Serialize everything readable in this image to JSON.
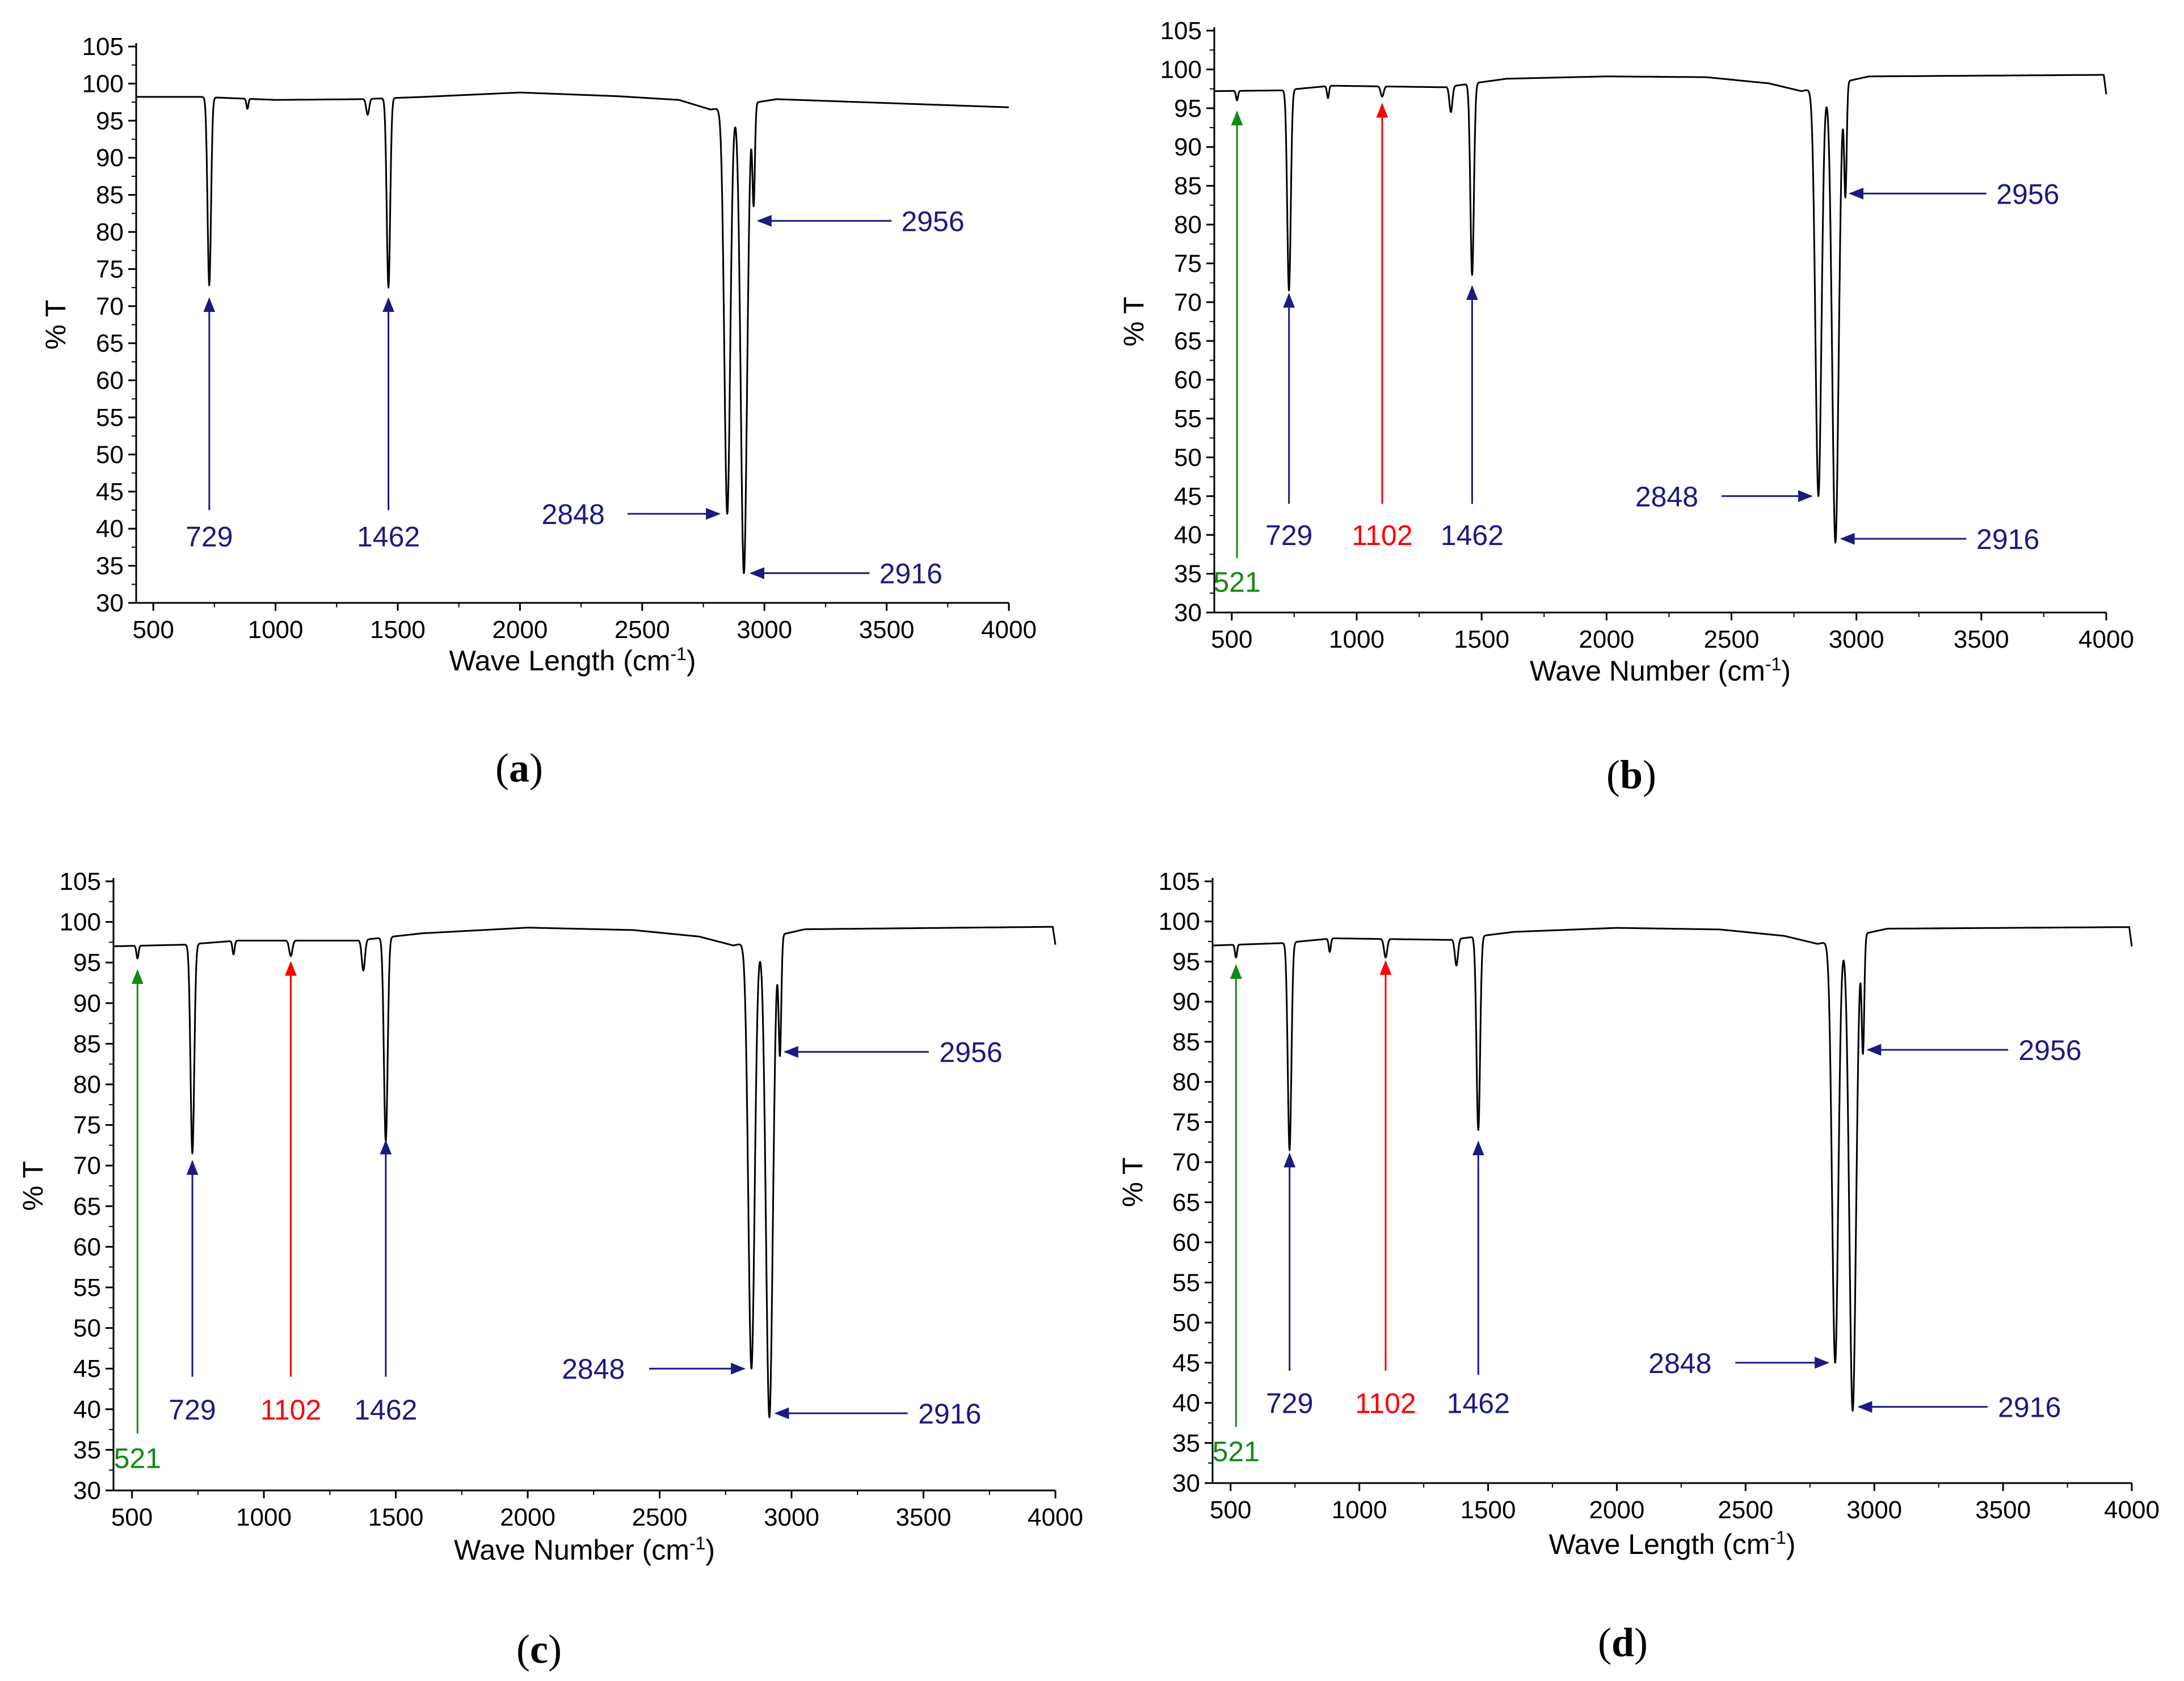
{
  "colors": {
    "blue": "#1a1a80",
    "red": "#ff0000",
    "green": "#138a13",
    "line": "#000000"
  },
  "chart_data": [
    {
      "id": "a",
      "type": "line",
      "caption": "a",
      "xlabel_main": "Wave Length (cm",
      "xlabel_sup": "-1",
      "xlabel_end": ")",
      "ylabel": "% T",
      "xlim": [
        430,
        4000
      ],
      "ylim": [
        30,
        105
      ],
      "xticks": [
        500,
        1000,
        1500,
        2000,
        2500,
        3000,
        3500,
        4000
      ],
      "yticks": [
        30,
        35,
        40,
        45,
        50,
        55,
        60,
        65,
        70,
        75,
        80,
        85,
        90,
        95,
        100,
        105
      ],
      "baseline": [
        [
          430,
          98.2
        ],
        [
          700,
          98.2
        ],
        [
          1000,
          97.8
        ],
        [
          1350,
          97.9
        ],
        [
          1600,
          98.2
        ],
        [
          2000,
          98.8
        ],
        [
          2400,
          98.3
        ],
        [
          2650,
          97.8
        ],
        [
          2780,
          96.5
        ],
        [
          3050,
          97.9
        ],
        [
          4000,
          96.8
        ]
      ],
      "dips": [
        [
          729,
          72.8,
          7
        ],
        [
          885,
          96.6,
          4
        ],
        [
          1377,
          95.8,
          6
        ],
        [
          1462,
          72.5,
          7
        ],
        [
          2848,
          42,
          12
        ],
        [
          2916,
          34,
          13
        ],
        [
          2956,
          84,
          5
        ]
      ],
      "annotations": [
        {
          "label": "729",
          "peak": 729,
          "color": "blue",
          "dir": "up",
          "tail": 42.5,
          "head": 71,
          "labelX": 729,
          "labelY": 39
        },
        {
          "label": "1462",
          "peak": 1462,
          "color": "blue",
          "dir": "up",
          "tail": 42.5,
          "head": 71,
          "labelX": 1462,
          "labelY": 39
        },
        {
          "label": "2848",
          "peak": 2848,
          "color": "blue",
          "dir": "right",
          "tail": 2440,
          "head": 2815,
          "y": 42,
          "labelX": 2370,
          "labelY": 42,
          "anchor": "end"
        },
        {
          "label": "2916",
          "peak": 2916,
          "color": "blue",
          "dir": "left",
          "tail": 3430,
          "head": 2945,
          "y": 34,
          "labelX": 3470,
          "labelY": 34,
          "anchor": "start"
        },
        {
          "label": "2956",
          "peak": 2956,
          "color": "blue",
          "dir": "left",
          "tail": 3520,
          "head": 2975,
          "y": 81.5,
          "labelX": 3560,
          "labelY": 81.5,
          "anchor": "start"
        }
      ]
    },
    {
      "id": "b",
      "type": "line",
      "caption": "b",
      "xlabel_main": "Wave Number (cm",
      "xlabel_sup": "-1",
      "xlabel_end": ")",
      "ylabel": "% T",
      "xlim": [
        430,
        4000
      ],
      "ylim": [
        30,
        105
      ],
      "xticks": [
        500,
        1000,
        1500,
        2000,
        2500,
        3000,
        3500,
        4000
      ],
      "yticks": [
        30,
        35,
        40,
        45,
        50,
        55,
        60,
        65,
        70,
        75,
        80,
        85,
        90,
        95,
        100,
        105
      ],
      "baseline": [
        [
          430,
          97.2
        ],
        [
          700,
          97.3
        ],
        [
          900,
          97.9
        ],
        [
          1350,
          97.7
        ],
        [
          1600,
          98.8
        ],
        [
          2000,
          99.1
        ],
        [
          2400,
          99.0
        ],
        [
          2650,
          98.2
        ],
        [
          2780,
          97.2
        ],
        [
          3050,
          99.1
        ],
        [
          3990,
          99.3
        ],
        [
          4000,
          96.8
        ]
      ],
      "dips": [
        [
          521,
          96,
          4
        ],
        [
          729,
          71.5,
          7
        ],
        [
          885,
          96.3,
          4
        ],
        [
          1102,
          96.5,
          6
        ],
        [
          1377,
          94.5,
          6
        ],
        [
          1462,
          73.5,
          7
        ],
        [
          2848,
          45,
          12
        ],
        [
          2916,
          39,
          13
        ],
        [
          2956,
          84,
          5
        ]
      ],
      "annotations": [
        {
          "label": "521",
          "peak": 521,
          "color": "green",
          "dir": "up",
          "tail": 37,
          "head": 94.5,
          "labelX": 521,
          "labelY": 34,
          "anchor": "middle"
        },
        {
          "label": "729",
          "peak": 729,
          "color": "blue",
          "dir": "up",
          "tail": 44,
          "head": 71,
          "labelX": 729,
          "labelY": 40,
          "anchor": "middle"
        },
        {
          "label": "1102",
          "peak": 1102,
          "color": "red",
          "dir": "up",
          "tail": 44,
          "head": 95.5,
          "labelX": 1102,
          "labelY": 40,
          "anchor": "middle"
        },
        {
          "label": "1462",
          "peak": 1462,
          "color": "blue",
          "dir": "up",
          "tail": 44,
          "head": 72,
          "labelX": 1462,
          "labelY": 40,
          "anchor": "middle"
        },
        {
          "label": "2848",
          "peak": 2848,
          "color": "blue",
          "dir": "right",
          "tail": 2460,
          "head": 2820,
          "y": 45,
          "labelX": 2390,
          "labelY": 45,
          "anchor": "end"
        },
        {
          "label": "2916",
          "peak": 2916,
          "color": "blue",
          "dir": "left",
          "tail": 3440,
          "head": 2940,
          "y": 39.5,
          "labelX": 3480,
          "labelY": 39.5,
          "anchor": "start"
        },
        {
          "label": "2956",
          "peak": 2956,
          "color": "blue",
          "dir": "left",
          "tail": 3520,
          "head": 2975,
          "y": 84,
          "labelX": 3560,
          "labelY": 84,
          "anchor": "start"
        }
      ]
    },
    {
      "id": "c",
      "type": "line",
      "caption": "c",
      "xlabel_main": "Wave Number (cm",
      "xlabel_sup": "-1",
      "xlabel_end": ")",
      "ylabel": "% T",
      "xlim": [
        430,
        4000
      ],
      "ylim": [
        30,
        105
      ],
      "xticks": [
        500,
        1000,
        1500,
        2000,
        2500,
        3000,
        3500,
        4000
      ],
      "yticks": [
        30,
        35,
        40,
        45,
        50,
        55,
        60,
        65,
        70,
        75,
        80,
        85,
        90,
        95,
        100,
        105
      ],
      "baseline": [
        [
          430,
          97.0
        ],
        [
          700,
          97.2
        ],
        [
          900,
          97.7
        ],
        [
          1350,
          97.7
        ],
        [
          1600,
          98.6
        ],
        [
          2000,
          99.3
        ],
        [
          2400,
          99.0
        ],
        [
          2650,
          98.2
        ],
        [
          2780,
          97.1
        ],
        [
          3050,
          99.1
        ],
        [
          3990,
          99.4
        ],
        [
          4000,
          97.2
        ]
      ],
      "dips": [
        [
          521,
          95.5,
          4
        ],
        [
          729,
          71.5,
          7
        ],
        [
          885,
          96,
          4
        ],
        [
          1102,
          95.8,
          6
        ],
        [
          1377,
          94,
          6
        ],
        [
          1462,
          73,
          7
        ],
        [
          2848,
          45,
          12
        ],
        [
          2916,
          39,
          13
        ],
        [
          2956,
          84,
          5
        ]
      ],
      "annotations": [
        {
          "label": "521",
          "peak": 521,
          "color": "green",
          "dir": "up",
          "tail": 37,
          "head": 94,
          "labelX": 521,
          "labelY": 34,
          "anchor": "middle"
        },
        {
          "label": "729",
          "peak": 729,
          "color": "blue",
          "dir": "up",
          "tail": 44,
          "head": 70.5,
          "labelX": 729,
          "labelY": 40,
          "anchor": "middle"
        },
        {
          "label": "1102",
          "peak": 1102,
          "color": "red",
          "dir": "up",
          "tail": 44,
          "head": 95,
          "labelX": 1102,
          "labelY": 40,
          "anchor": "middle"
        },
        {
          "label": "1462",
          "peak": 1462,
          "color": "blue",
          "dir": "up",
          "tail": 44,
          "head": 73,
          "labelX": 1462,
          "labelY": 40,
          "anchor": "middle"
        },
        {
          "label": "2848",
          "peak": 2848,
          "color": "blue",
          "dir": "right",
          "tail": 2460,
          "head": 2820,
          "y": 45,
          "labelX": 2390,
          "labelY": 45,
          "anchor": "end"
        },
        {
          "label": "2916",
          "peak": 2916,
          "color": "blue",
          "dir": "left",
          "tail": 3440,
          "head": 2940,
          "y": 39.5,
          "labelX": 3480,
          "labelY": 39.5,
          "anchor": "start"
        },
        {
          "label": "2956",
          "peak": 2956,
          "color": "blue",
          "dir": "left",
          "tail": 3520,
          "head": 2975,
          "y": 84,
          "labelX": 3560,
          "labelY": 84,
          "anchor": "start"
        }
      ]
    },
    {
      "id": "d",
      "type": "line",
      "caption": "d",
      "xlabel_main": "Wave Length (cm",
      "xlabel_sup": "-1",
      "xlabel_end": ")",
      "ylabel": "% T",
      "xlim": [
        430,
        4000
      ],
      "ylim": [
        30,
        105
      ],
      "xticks": [
        500,
        1000,
        1500,
        2000,
        2500,
        3000,
        3500,
        4000
      ],
      "yticks": [
        30,
        35,
        40,
        45,
        50,
        55,
        60,
        65,
        70,
        75,
        80,
        85,
        90,
        95,
        100,
        105
      ],
      "baseline": [
        [
          430,
          97.0
        ],
        [
          700,
          97.3
        ],
        [
          900,
          97.9
        ],
        [
          1350,
          97.7
        ],
        [
          1600,
          98.7
        ],
        [
          2000,
          99.2
        ],
        [
          2400,
          99.0
        ],
        [
          2650,
          98.2
        ],
        [
          2780,
          97.2
        ],
        [
          3050,
          99.1
        ],
        [
          3990,
          99.3
        ],
        [
          4000,
          96.9
        ]
      ],
      "dips": [
        [
          521,
          95.5,
          4
        ],
        [
          729,
          71.5,
          7
        ],
        [
          885,
          96.2,
          4
        ],
        [
          1102,
          95.5,
          6
        ],
        [
          1377,
          94.5,
          6
        ],
        [
          1462,
          74,
          7
        ],
        [
          2848,
          45,
          12
        ],
        [
          2916,
          39,
          13
        ],
        [
          2956,
          84,
          5
        ]
      ],
      "annotations": [
        {
          "label": "521",
          "peak": 521,
          "color": "green",
          "dir": "up",
          "tail": 37,
          "head": 94.5,
          "labelX": 521,
          "labelY": 34,
          "anchor": "middle"
        },
        {
          "label": "729",
          "peak": 729,
          "color": "blue",
          "dir": "up",
          "tail": 44,
          "head": 71,
          "labelX": 729,
          "labelY": 40,
          "anchor": "middle"
        },
        {
          "label": "1102",
          "peak": 1102,
          "color": "red",
          "dir": "up",
          "tail": 44,
          "head": 95,
          "labelX": 1102,
          "labelY": 40,
          "anchor": "middle"
        },
        {
          "label": "1462",
          "peak": 1462,
          "color": "blue",
          "dir": "up",
          "tail": 43.5,
          "head": 72.5,
          "labelX": 1462,
          "labelY": 40,
          "anchor": "middle"
        },
        {
          "label": "2848",
          "peak": 2848,
          "color": "blue",
          "dir": "right",
          "tail": 2460,
          "head": 2820,
          "y": 45,
          "labelX": 2390,
          "labelY": 45,
          "anchor": "end"
        },
        {
          "label": "2916",
          "peak": 2916,
          "color": "blue",
          "dir": "left",
          "tail": 3440,
          "head": 2940,
          "y": 39.5,
          "labelX": 3480,
          "labelY": 39.5,
          "anchor": "start"
        },
        {
          "label": "2956",
          "peak": 2956,
          "color": "blue",
          "dir": "left",
          "tail": 3520,
          "head": 2975,
          "y": 84,
          "labelX": 3560,
          "labelY": 84,
          "anchor": "start"
        }
      ]
    }
  ]
}
